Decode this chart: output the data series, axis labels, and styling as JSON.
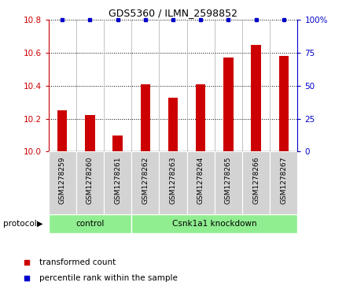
{
  "title": "GDS5360 / ILMN_2598852",
  "samples": [
    "GSM1278259",
    "GSM1278260",
    "GSM1278261",
    "GSM1278262",
    "GSM1278263",
    "GSM1278264",
    "GSM1278265",
    "GSM1278266",
    "GSM1278267"
  ],
  "transformed_counts": [
    10.25,
    10.22,
    10.1,
    10.41,
    10.33,
    10.41,
    10.57,
    10.65,
    10.58
  ],
  "percentile_ranks": [
    100,
    100,
    100,
    100,
    100,
    100,
    100,
    100,
    100
  ],
  "ylim": [
    10.0,
    10.8
  ],
  "yticks_left": [
    10.0,
    10.2,
    10.4,
    10.6,
    10.8
  ],
  "yticks_right": [
    0,
    25,
    50,
    75,
    100
  ],
  "bar_color": "#cc0000",
  "dot_color": "#0000cc",
  "ctrl_count": 3,
  "kd_count": 6,
  "ctrl_label": "control",
  "kd_label": "Csnk1a1 knockdown",
  "protocol_label": "protocol",
  "group_color": "#90ee90",
  "sample_box_color": "#d3d3d3",
  "legend_bar_label": "transformed count",
  "legend_dot_label": "percentile rank within the sample"
}
